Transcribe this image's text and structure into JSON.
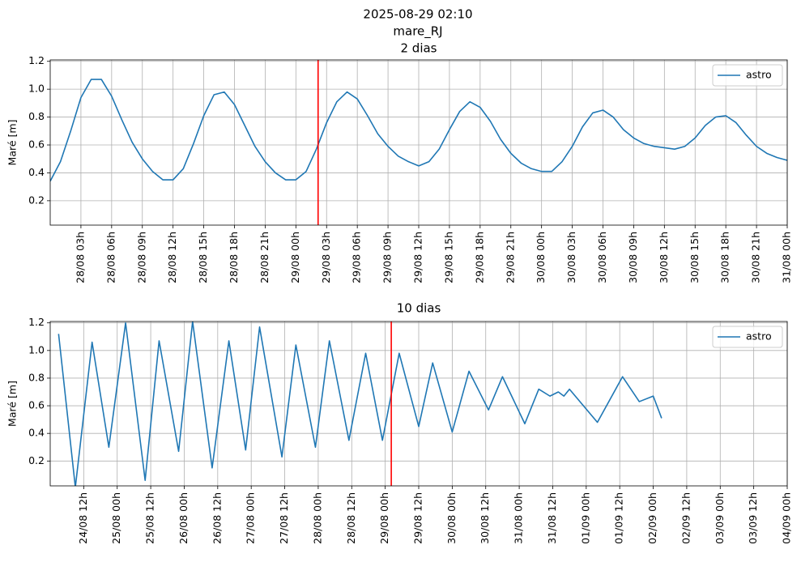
{
  "header": {
    "lines": [
      "2025-08-29 02:10",
      "mare_RJ"
    ]
  },
  "chart_data": [
    {
      "type": "line",
      "title": "2 dias",
      "ylabel": "Maré [m]",
      "x": [
        0,
        1,
        2,
        3,
        4,
        5,
        6,
        7,
        8,
        9,
        10,
        11,
        12,
        13,
        14,
        15,
        16,
        17,
        18,
        19,
        20,
        21,
        22,
        23,
        24,
        25,
        26,
        27,
        28,
        29,
        30,
        31,
        32,
        33,
        34,
        35,
        36,
        37,
        38,
        39,
        40,
        41,
        42,
        43,
        44,
        45,
        46,
        47,
        48,
        49,
        50,
        51,
        52,
        53,
        54,
        55,
        56,
        57,
        58,
        59,
        60,
        61,
        62,
        63,
        64,
        65,
        66,
        67,
        68,
        69,
        70,
        71,
        72
      ],
      "series": [
        {
          "name": "astro",
          "color": "#1f77b4",
          "values": [
            0.34,
            0.48,
            0.7,
            0.94,
            1.07,
            1.07,
            0.95,
            0.78,
            0.62,
            0.5,
            0.41,
            0.35,
            0.35,
            0.43,
            0.61,
            0.81,
            0.96,
            0.98,
            0.89,
            0.74,
            0.59,
            0.48,
            0.4,
            0.35,
            0.35,
            0.41,
            0.57,
            0.76,
            0.91,
            0.98,
            0.93,
            0.81,
            0.68,
            0.59,
            0.52,
            0.48,
            0.45,
            0.48,
            0.57,
            0.71,
            0.84,
            0.91,
            0.87,
            0.77,
            0.64,
            0.54,
            0.47,
            0.43,
            0.41,
            0.41,
            0.48,
            0.59,
            0.73,
            0.83,
            0.85,
            0.8,
            0.71,
            0.65,
            0.61,
            0.59,
            0.58,
            0.57,
            0.59,
            0.65,
            0.74,
            0.8,
            0.81,
            0.76,
            0.67,
            0.59,
            0.54,
            0.51,
            0.49
          ]
        }
      ],
      "xlim": [
        0,
        72
      ],
      "ylim": [
        0.025,
        1.21
      ],
      "xticks": [
        {
          "value": 3,
          "label": "28/08 03h"
        },
        {
          "value": 6,
          "label": "28/08 06h"
        },
        {
          "value": 9,
          "label": "28/08 09h"
        },
        {
          "value": 12,
          "label": "28/08 12h"
        },
        {
          "value": 15,
          "label": "28/08 15h"
        },
        {
          "value": 18,
          "label": "28/08 18h"
        },
        {
          "value": 21,
          "label": "28/08 21h"
        },
        {
          "value": 24,
          "label": "29/08 00h"
        },
        {
          "value": 27,
          "label": "29/08 03h"
        },
        {
          "value": 30,
          "label": "29/08 06h"
        },
        {
          "value": 33,
          "label": "29/08 09h"
        },
        {
          "value": 36,
          "label": "29/08 12h"
        },
        {
          "value": 39,
          "label": "29/08 15h"
        },
        {
          "value": 42,
          "label": "29/08 18h"
        },
        {
          "value": 45,
          "label": "29/08 21h"
        },
        {
          "value": 48,
          "label": "30/08 00h"
        },
        {
          "value": 51,
          "label": "30/08 03h"
        },
        {
          "value": 54,
          "label": "30/08 06h"
        },
        {
          "value": 57,
          "label": "30/08 09h"
        },
        {
          "value": 60,
          "label": "30/08 12h"
        },
        {
          "value": 63,
          "label": "30/08 15h"
        },
        {
          "value": 66,
          "label": "30/08 18h"
        },
        {
          "value": 69,
          "label": "30/08 21h"
        },
        {
          "value": 72,
          "label": "31/08 00h"
        }
      ],
      "yticks": [
        0.2,
        0.4,
        0.6,
        0.8,
        {
          "value": 1,
          "label": "1.0"
        },
        1.2
      ],
      "grid": true,
      "legend": "upper right",
      "vline": {
        "x": 26.17,
        "color": "red"
      }
    },
    {
      "type": "line",
      "title": "10 dias",
      "ylabel": "Maré [m]",
      "x": [
        3,
        9,
        15,
        21,
        27,
        34,
        39,
        46,
        51,
        58,
        64,
        70,
        75,
        83,
        88,
        95,
        100,
        107,
        113,
        119,
        125,
        132,
        137,
        144,
        150,
        157,
        162,
        170,
        175,
        179,
        182,
        184,
        186,
        196,
        205,
        211,
        216,
        219
      ],
      "series": [
        {
          "name": "astro",
          "color": "#1f77b4",
          "values": [
            1.12,
            0.01,
            1.06,
            0.3,
            1.2,
            0.06,
            1.07,
            0.27,
            1.21,
            0.15,
            1.07,
            0.28,
            1.17,
            0.23,
            1.04,
            0.3,
            1.07,
            0.35,
            0.98,
            0.35,
            0.98,
            0.45,
            0.91,
            0.41,
            0.85,
            0.57,
            0.81,
            0.47,
            0.72,
            0.67,
            0.7,
            0.67,
            0.72,
            0.48,
            0.81,
            0.63,
            0.67,
            0.51
          ]
        }
      ],
      "xlim": [
        0,
        264
      ],
      "ylim": [
        0.02,
        1.21
      ],
      "xticks": [
        {
          "value": 12,
          "label": "24/08 12h"
        },
        {
          "value": 24,
          "label": "25/08 00h"
        },
        {
          "value": 36,
          "label": "25/08 12h"
        },
        {
          "value": 48,
          "label": "26/08 00h"
        },
        {
          "value": 60,
          "label": "26/08 12h"
        },
        {
          "value": 72,
          "label": "27/08 00h"
        },
        {
          "value": 84,
          "label": "27/08 12h"
        },
        {
          "value": 96,
          "label": "28/08 00h"
        },
        {
          "value": 108,
          "label": "28/08 12h"
        },
        {
          "value": 120,
          "label": "29/08 00h"
        },
        {
          "value": 132,
          "label": "29/08 12h"
        },
        {
          "value": 144,
          "label": "30/08 00h"
        },
        {
          "value": 156,
          "label": "30/08 12h"
        },
        {
          "value": 168,
          "label": "31/08 00h"
        },
        {
          "value": 180,
          "label": "31/08 12h"
        },
        {
          "value": 192,
          "label": "01/09 00h"
        },
        {
          "value": 204,
          "label": "01/09 12h"
        },
        {
          "value": 216,
          "label": "02/09 00h"
        },
        {
          "value": 228,
          "label": "02/09 12h"
        },
        {
          "value": 240,
          "label": "03/09 00h"
        },
        {
          "value": 252,
          "label": "03/09 12h"
        },
        {
          "value": 264,
          "label": "04/09 00h"
        }
      ],
      "yticks": [
        0.2,
        0.4,
        0.6,
        0.8,
        {
          "value": 1,
          "label": "1.0"
        },
        1.2
      ],
      "grid": true,
      "legend": "upper right",
      "vline": {
        "x": 122.17,
        "color": "red"
      }
    }
  ]
}
